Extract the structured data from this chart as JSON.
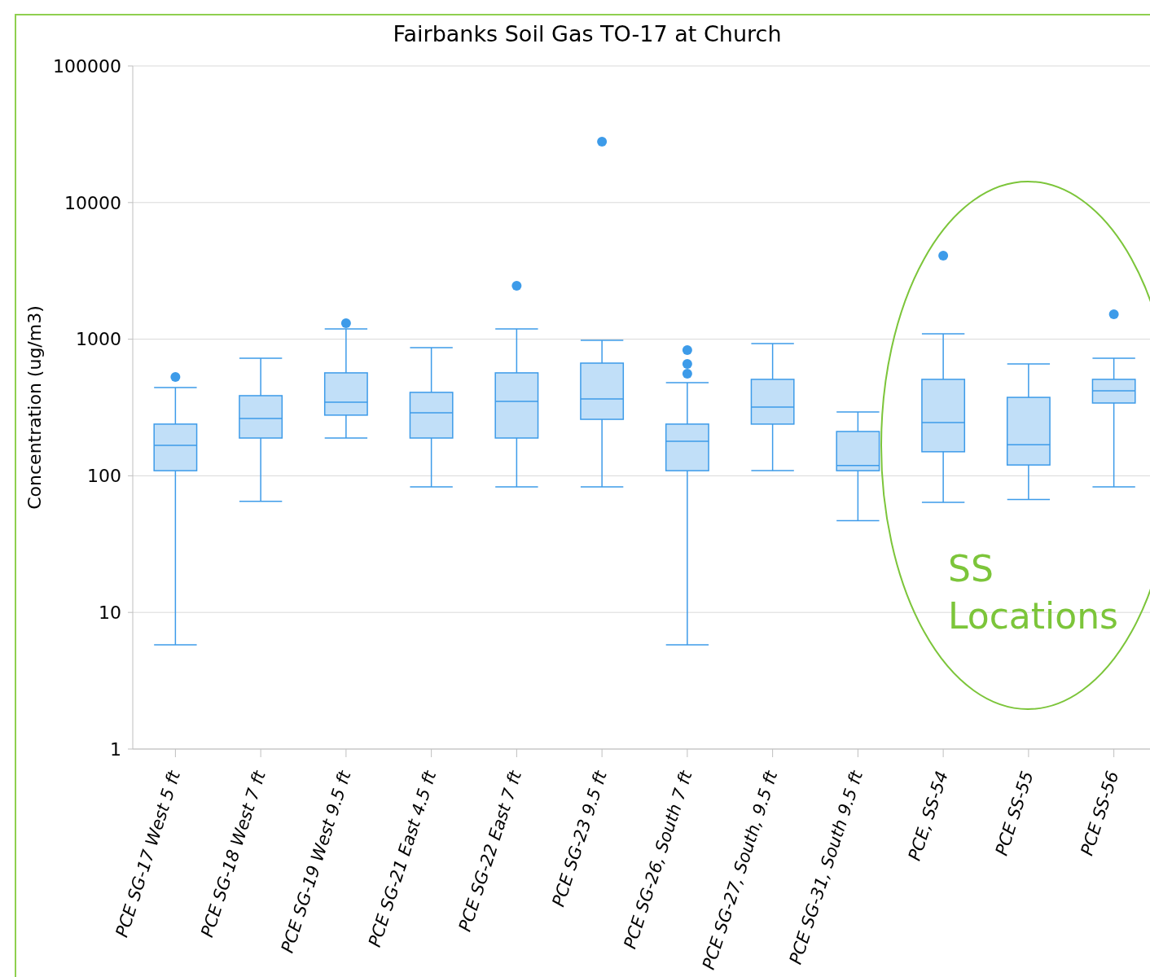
{
  "chart_data": {
    "type": "box",
    "title": "Fairbanks Soil Gas TO-17 at Church",
    "ylabel": "Concentration (ug/m3)",
    "categories": [
      "PCE SG-17 West 5 ft",
      "PCE SG-18 West 7 ft",
      "PCE SG-19 West 9.5 ft",
      "PCE SG-21 East 4.5 ft",
      "PCE SG-22 East 7 ft",
      "PCE SG-23 9.5 ft",
      "PCE SG-26, South 7 ft",
      "PCE SG-27, South, 9.5 ft",
      "PCE SG-31, South 9.5 ft",
      "PCE, SS-54",
      "PCE SS-55",
      "PCE SS-56"
    ],
    "color": "#3d9be9",
    "log": true,
    "grid": "y",
    "ylim": [
      1,
      100000
    ],
    "yticks": [
      1,
      10,
      100,
      1000,
      10000,
      100000
    ],
    "boxes": [
      {
        "low": 5.8,
        "q1": 109,
        "median": 167,
        "q3": 239,
        "high": 443,
        "outliers": [
          529
        ]
      },
      {
        "low": 65,
        "q1": 189,
        "median": 263,
        "q3": 386,
        "high": 726
      },
      {
        "low": 189,
        "q1": 278,
        "median": 346,
        "q3": 567,
        "high": 1189,
        "outliers": [
          1309
        ]
      },
      {
        "low": 83,
        "q1": 189,
        "median": 289,
        "q3": 408,
        "high": 867
      },
      {
        "low": 83,
        "q1": 189,
        "median": 351,
        "q3": 567,
        "high": 1189,
        "outliers": [
          2460
        ]
      },
      {
        "low": 83,
        "q1": 259,
        "median": 365,
        "q3": 668,
        "high": 981,
        "outliers": [
          27900
        ]
      },
      {
        "low": 5.8,
        "q1": 109,
        "median": 179,
        "q3": 239,
        "high": 481,
        "outliers": [
          559,
          659,
          832
        ]
      },
      {
        "low": 109,
        "q1": 239,
        "median": 318,
        "q3": 508,
        "high": 929
      },
      {
        "low": 47,
        "q1": 109,
        "median": 119,
        "q3": 211,
        "high": 293
      },
      {
        "low": 64,
        "q1": 150,
        "median": 245,
        "q3": 508,
        "high": 1094,
        "outliers": [
          4090
        ]
      },
      {
        "low": 67,
        "q1": 120,
        "median": 169,
        "q3": 375,
        "high": 659
      },
      {
        "low": 83,
        "q1": 341,
        "median": 419,
        "q3": 508,
        "high": 726,
        "outliers": [
          1522
        ]
      }
    ],
    "annotations": [
      "SS Locations"
    ]
  }
}
